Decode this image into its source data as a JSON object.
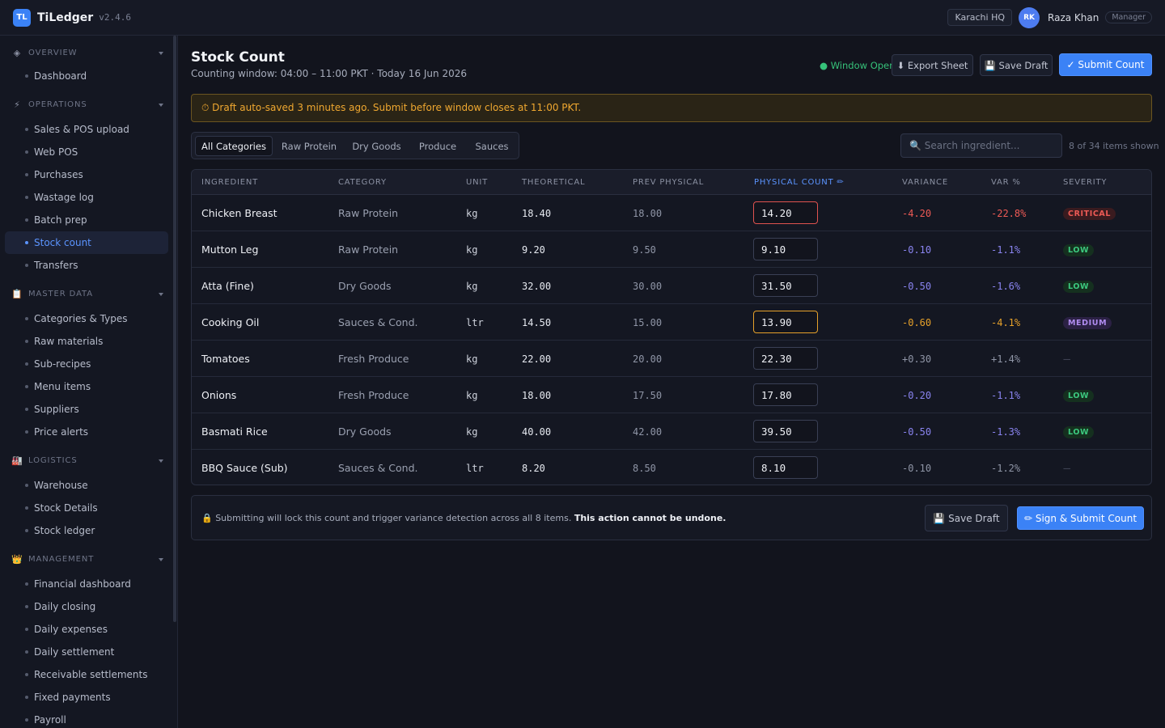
{
  "app": {
    "logo": "TL",
    "name": "TiLedger",
    "version": "v2.4.6",
    "location": "Karachi HQ",
    "user_initials": "RK",
    "user_name": "Raza Khan",
    "user_role": "Manager"
  },
  "sidebar": {
    "sections": [
      {
        "icon": "◈",
        "label": "OVERVIEW",
        "items": [
          {
            "label": "Dashboard"
          }
        ]
      },
      {
        "icon": "⚡",
        "label": "OPERATIONS",
        "items": [
          {
            "label": "Sales & POS upload"
          },
          {
            "label": "Web POS"
          },
          {
            "label": "Purchases"
          },
          {
            "label": "Wastage log"
          },
          {
            "label": "Batch prep"
          },
          {
            "label": "Stock count",
            "active": true
          },
          {
            "label": "Transfers"
          }
        ]
      },
      {
        "icon": "📋",
        "label": "MASTER DATA",
        "items": [
          {
            "label": "Categories & Types"
          },
          {
            "label": "Raw materials"
          },
          {
            "label": "Sub-recipes"
          },
          {
            "label": "Menu items"
          },
          {
            "label": "Suppliers"
          },
          {
            "label": "Price alerts"
          }
        ]
      },
      {
        "icon": "🏭",
        "label": "LOGISTICS",
        "items": [
          {
            "label": "Warehouse"
          },
          {
            "label": "Stock Details"
          },
          {
            "label": "Stock ledger"
          }
        ]
      },
      {
        "icon": "👑",
        "label": "MANAGEMENT",
        "items": [
          {
            "label": "Financial dashboard"
          },
          {
            "label": "Daily closing"
          },
          {
            "label": "Daily expenses"
          },
          {
            "label": "Daily settlement"
          },
          {
            "label": "Receivable settlements"
          },
          {
            "label": "Fixed payments"
          },
          {
            "label": "Payroll"
          }
        ]
      }
    ]
  },
  "header": {
    "title": "Stock Count",
    "subtitle": "Counting window: 04:00 – 11:00 PKT · Today 16 Jun 2026",
    "status": "● Window Open",
    "export_label": "⬇ Export Sheet",
    "save_label": "💾 Save Draft",
    "submit_label": "✓ Submit Count"
  },
  "banner": {
    "text": "⏱ Draft auto-saved 3 minutes ago. Submit before window closes at 11:00 PKT."
  },
  "filters": {
    "tabs": [
      "All Categories",
      "Raw Protein",
      "Dry Goods",
      "Produce",
      "Sauces"
    ],
    "active_tab": 0,
    "search_placeholder": "🔍 Search ingredient...",
    "count_text": "8 of 34 items shown"
  },
  "table": {
    "columns": [
      "INGREDIENT",
      "CATEGORY",
      "UNIT",
      "THEORETICAL",
      "PREV PHYSICAL",
      "PHYSICAL COUNT ✏",
      "VARIANCE",
      "VAR %",
      "SEVERITY"
    ],
    "rows": [
      {
        "name": "Chicken Breast",
        "category": "Raw Protein",
        "unit": "kg",
        "theoretical": "18.40",
        "prev": "18.00",
        "physical": "14.20",
        "variance": "-4.20",
        "var_pct": "-22.8%",
        "severity": "CRITICAL",
        "level": "critical"
      },
      {
        "name": "Mutton Leg",
        "category": "Raw Protein",
        "unit": "kg",
        "theoretical": "9.20",
        "prev": "9.50",
        "physical": "9.10",
        "variance": "-0.10",
        "var_pct": "-1.1%",
        "severity": "LOW",
        "level": "low"
      },
      {
        "name": "Atta (Fine)",
        "category": "Dry Goods",
        "unit": "kg",
        "theoretical": "32.00",
        "prev": "30.00",
        "physical": "31.50",
        "variance": "-0.50",
        "var_pct": "-1.6%",
        "severity": "LOW",
        "level": "low"
      },
      {
        "name": "Cooking Oil",
        "category": "Sauces & Cond.",
        "unit": "ltr",
        "theoretical": "14.50",
        "prev": "15.00",
        "physical": "13.90",
        "variance": "-0.60",
        "var_pct": "-4.1%",
        "severity": "MEDIUM",
        "level": "medium"
      },
      {
        "name": "Tomatoes",
        "category": "Fresh Produce",
        "unit": "kg",
        "theoretical": "22.00",
        "prev": "20.00",
        "physical": "22.30",
        "variance": "+0.30",
        "var_pct": "+1.4%",
        "severity": "—",
        "level": "none"
      },
      {
        "name": "Onions",
        "category": "Fresh Produce",
        "unit": "kg",
        "theoretical": "18.00",
        "prev": "17.50",
        "physical": "17.80",
        "variance": "-0.20",
        "var_pct": "-1.1%",
        "severity": "LOW",
        "level": "low"
      },
      {
        "name": "Basmati Rice",
        "category": "Dry Goods",
        "unit": "kg",
        "theoretical": "40.00",
        "prev": "42.00",
        "physical": "39.50",
        "variance": "-0.50",
        "var_pct": "-1.3%",
        "severity": "LOW",
        "level": "low"
      },
      {
        "name": "BBQ Sauce (Sub)",
        "category": "Sauces & Cond.",
        "unit": "ltr",
        "theoretical": "8.20",
        "prev": "8.50",
        "physical": "8.10",
        "variance": "-0.10",
        "var_pct": "-1.2%",
        "severity": "—",
        "level": "none"
      }
    ]
  },
  "footer": {
    "note": "🔒 Submitting will lock this count and trigger variance detection across all 8 items.",
    "note_strong": "This action cannot be undone.",
    "save_label": "💾 Save Draft",
    "submit_label": "✏ Sign & Submit Count"
  }
}
